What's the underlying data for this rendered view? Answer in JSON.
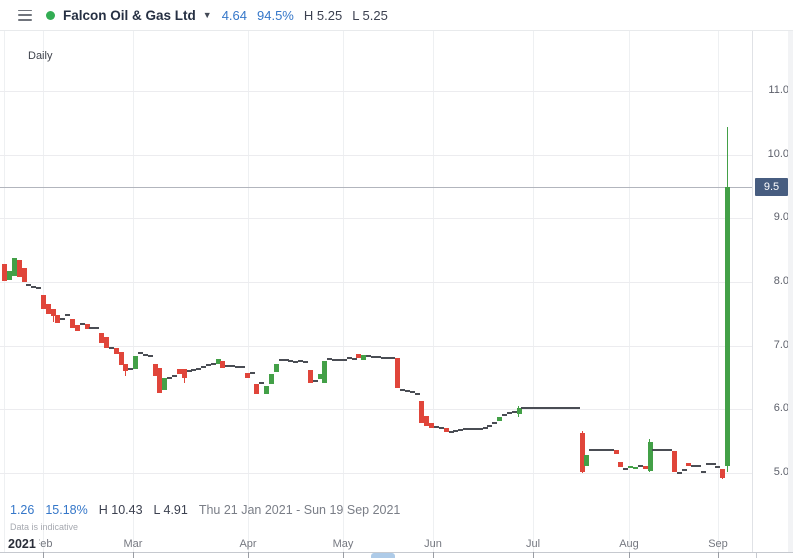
{
  "header": {
    "menu_icon": "hamburger",
    "status_color": "#33ad54",
    "title": "Falcon Oil & Gas Ltd",
    "caret_icon": "chevron-down",
    "change": "4.64",
    "change_pct": "94.5%",
    "session_high": "H 5.25",
    "session_low": "L 5.25",
    "accent_blue": "#3577c9"
  },
  "chart": {
    "interval_label": "Daily",
    "last_price_label": "9.5"
  },
  "x_axis": {
    "year_label": "2021"
  },
  "footer": {
    "change": "1.26",
    "change_pct": "15.18%",
    "high": "H 10.43",
    "low": "L 4.91",
    "date_range": "Thu 21 Jan 2021 - Sun 19 Sep 2021",
    "disclaimer": "Data is indicative"
  },
  "chart_data": {
    "type": "candlestick",
    "title": "Falcon Oil & Gas Ltd",
    "interval": "Daily",
    "period": "Thu 21 Jan 2021 - Sun 19 Sep 2021",
    "period_high": 10.43,
    "period_low": 4.91,
    "period_change": 1.26,
    "period_change_pct": "15.18%",
    "last_price": 9.5,
    "session_high": 5.25,
    "session_low": 5.25,
    "y_axis": {
      "ticks": [
        11.0,
        10.0,
        9.0,
        8.0,
        7.0,
        6.0,
        5.0
      ],
      "range": [
        4.7,
        11.4
      ],
      "grid": true
    },
    "x_axis_months": [
      "Feb",
      "Mar",
      "Apr",
      "May",
      "Jun",
      "Jul",
      "Aug",
      "Sep"
    ],
    "up_color": "#43a047",
    "down_color": "#e0453a",
    "doji_color": "#4a4d54",
    "candles_format": "[price]=flat doji dash, [open,close]=body, [open,close,high,low]=body with wick",
    "candles": [
      [
        8.28,
        8.02
      ],
      [
        8.03,
        8.17
      ],
      [
        8.1,
        8.38
      ],
      [
        8.34,
        8.08
      ],
      [
        8.22,
        8.0
      ],
      [
        7.95
      ],
      [
        7.93
      ],
      [
        7.91
      ],
      [
        7.8,
        7.58
      ],
      [
        7.66,
        7.5
      ],
      [
        7.57,
        7.46,
        7.58,
        7.38
      ],
      [
        7.48,
        7.36
      ],
      [
        7.42
      ],
      [
        7.48
      ],
      [
        7.42,
        7.28
      ],
      [
        7.32,
        7.23
      ],
      [
        7.34
      ],
      [
        7.34,
        7.26
      ],
      [
        7.28
      ],
      [
        7.28
      ],
      [
        7.2,
        7.05
      ],
      [
        7.13,
        6.97
      ],
      [
        6.97
      ],
      [
        6.97,
        6.87
      ],
      [
        6.9,
        6.69
      ],
      [
        6.72,
        6.61,
        6.72,
        6.52
      ],
      [
        6.64
      ],
      [
        6.64,
        6.84
      ],
      [
        6.88
      ],
      [
        6.86
      ],
      [
        6.84
      ],
      [
        6.72,
        6.53
      ],
      [
        6.65,
        6.26
      ],
      [
        6.3,
        6.5
      ],
      [
        6.49
      ],
      [
        6.52
      ],
      [
        6.63,
        6.56
      ],
      [
        6.63,
        6.5,
        6.63,
        6.42
      ],
      [
        6.6
      ],
      [
        6.62
      ],
      [
        6.64
      ],
      [
        6.66
      ],
      [
        6.7
      ],
      [
        6.72
      ],
      [
        6.72,
        6.79
      ],
      [
        6.76,
        6.65
      ],
      [
        6.68
      ],
      [
        6.68
      ],
      [
        6.67
      ],
      [
        6.67
      ],
      [
        6.58,
        6.5
      ],
      [
        6.58
      ],
      [
        6.4,
        6.24
      ],
      [
        6.42
      ],
      [
        6.24,
        6.37
      ],
      [
        6.4,
        6.56
      ],
      [
        6.58,
        6.72
      ],
      [
        6.78
      ],
      [
        6.77
      ],
      [
        6.76
      ],
      [
        6.74
      ],
      [
        6.76
      ],
      [
        6.75
      ],
      [
        6.62,
        6.42
      ],
      [
        6.44
      ],
      [
        6.47,
        6.56
      ],
      [
        6.42,
        6.76
      ],
      [
        6.79
      ],
      [
        6.78
      ],
      [
        6.77
      ],
      [
        6.78
      ],
      [
        6.8
      ],
      [
        6.79
      ],
      [
        6.87,
        6.81
      ],
      [
        6.78,
        6.85
      ],
      [
        6.84
      ],
      [
        6.83
      ],
      [
        6.82
      ],
      [
        6.81
      ],
      [
        6.8
      ],
      [
        6.8
      ],
      [
        6.81,
        6.33
      ],
      [
        6.3
      ],
      [
        6.29
      ],
      [
        6.28
      ],
      [
        6.24
      ],
      [
        6.13,
        5.78
      ],
      [
        5.9,
        5.74
      ],
      [
        5.79,
        5.71
      ],
      [
        5.72
      ],
      [
        5.71
      ],
      [
        5.71,
        5.65
      ],
      [
        5.64
      ],
      [
        5.66
      ],
      [
        5.68
      ],
      [
        5.69
      ],
      [
        5.69
      ],
      [
        5.69
      ],
      [
        5.7
      ],
      [
        5.71
      ],
      [
        5.74
      ],
      [
        5.78
      ],
      [
        5.82,
        5.88
      ],
      [
        5.92
      ],
      [
        5.95
      ],
      [
        5.96
      ],
      [
        5.93,
        6.02,
        6.05,
        5.88
      ],
      [
        6.03
      ],
      [
        6.02
      ],
      [
        6.02
      ],
      [
        6.02
      ],
      [
        6.02
      ],
      [
        6.02
      ],
      [
        6.02
      ],
      [
        6.02
      ],
      [
        6.02
      ],
      [
        6.02
      ],
      [
        6.02
      ],
      [
        6.02
      ],
      [
        5.63,
        5.02,
        5.66,
        5.0
      ],
      [
        5.12,
        5.28
      ],
      [
        5.36
      ],
      [
        5.37
      ],
      [
        5.37
      ],
      [
        5.36
      ],
      [
        5.37
      ],
      [
        5.36,
        5.3
      ],
      [
        5.18,
        5.09
      ],
      [
        5.07
      ],
      [
        5.08,
        5.11
      ],
      [
        5.06,
        5.1
      ],
      [
        5.12
      ],
      [
        5.11,
        5.07
      ],
      [
        5.04,
        5.49,
        5.53,
        5.02
      ],
      [
        5.37
      ],
      [
        5.37
      ],
      [
        5.36
      ],
      [
        5.36
      ],
      [
        5.35,
        5.02
      ],
      [
        5.0
      ],
      [
        5.05
      ],
      [
        5.16,
        5.11
      ],
      [
        5.11
      ],
      [
        5.11
      ],
      [
        5.02
      ],
      [
        5.15
      ],
      [
        5.14
      ],
      [
        5.09
      ],
      [
        5.07,
        4.92,
        5.07,
        4.91
      ],
      [
        5.11,
        9.5,
        10.43,
        5.02
      ]
    ]
  }
}
